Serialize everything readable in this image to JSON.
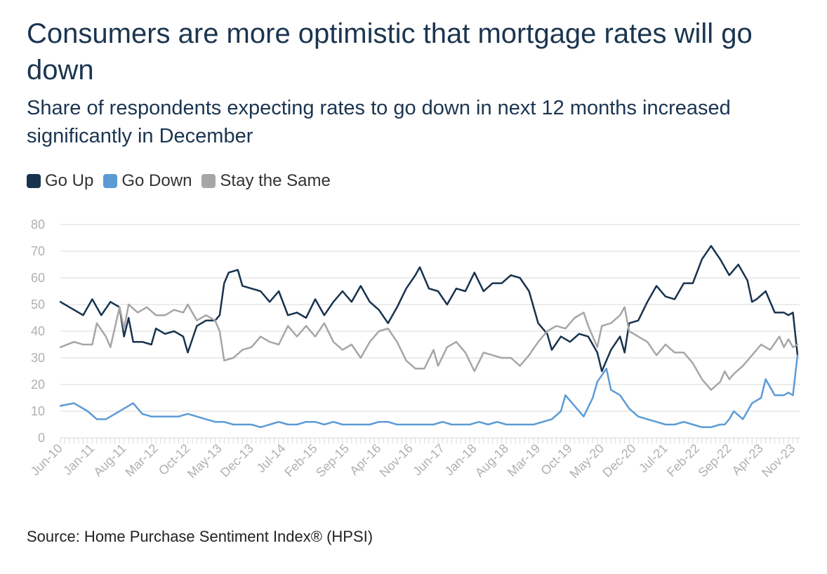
{
  "colors": {
    "go_up": "#17324d",
    "go_down": "#5b9bd5",
    "stay_same": "#a6a6a6",
    "grid": "#e6e6e6"
  },
  "chart_data": {
    "type": "line",
    "title": "Consumers are more optimistic that mortgage rates will go down",
    "subtitle": "Share of respondents expecting rates to go down in next 12 months increased significantly in December",
    "source": "Source: Home Purchase Sentiment Index® (HPSI)",
    "ylim": [
      0,
      80
    ],
    "y_ticks": [
      0,
      10,
      20,
      30,
      40,
      50,
      60,
      70,
      80
    ],
    "x_start": "Jun-10",
    "x_end": "Dec-23",
    "x_tick_labels": [
      "Jun-10",
      "Jan-11",
      "Aug-11",
      "Mar-12",
      "Oct-12",
      "May-13",
      "Dec-13",
      "Jul-14",
      "Feb-15",
      "Sep-15",
      "Apr-16",
      "Nov-16",
      "Jun-17",
      "Jan-18",
      "Aug-18",
      "Mar-19",
      "Oct-19",
      "May-20",
      "Dec-20",
      "Jul-21",
      "Feb-22",
      "Sep-22",
      "Apr-23",
      "Nov-23"
    ],
    "grid": true,
    "legend": "top-left",
    "series": [
      {
        "name": "Go Up",
        "color": "#17324d",
        "points": [
          [
            "Jun-10",
            51
          ],
          [
            "Sep-10",
            48
          ],
          [
            "Nov-10",
            46
          ],
          [
            "Jan-11",
            52
          ],
          [
            "Mar-11",
            46
          ],
          [
            "May-11",
            51
          ],
          [
            "Jul-11",
            49
          ],
          [
            "Aug-11",
            38
          ],
          [
            "Sep-11",
            45
          ],
          [
            "Oct-11",
            36
          ],
          [
            "Dec-11",
            36
          ],
          [
            "Feb-12",
            35
          ],
          [
            "Mar-12",
            41
          ],
          [
            "May-12",
            39
          ],
          [
            "Jul-12",
            40
          ],
          [
            "Sep-12",
            38
          ],
          [
            "Oct-12",
            32
          ],
          [
            "Dec-12",
            42
          ],
          [
            "Feb-13",
            44
          ],
          [
            "Apr-13",
            44
          ],
          [
            "May-13",
            46
          ],
          [
            "Jun-13",
            58
          ],
          [
            "Jul-13",
            62
          ],
          [
            "Sep-13",
            63
          ],
          [
            "Oct-13",
            57
          ],
          [
            "Dec-13",
            56
          ],
          [
            "Feb-14",
            55
          ],
          [
            "Apr-14",
            51
          ],
          [
            "Jun-14",
            55
          ],
          [
            "Aug-14",
            46
          ],
          [
            "Oct-14",
            47
          ],
          [
            "Dec-14",
            45
          ],
          [
            "Feb-15",
            52
          ],
          [
            "Apr-15",
            46
          ],
          [
            "Jun-15",
            51
          ],
          [
            "Aug-15",
            55
          ],
          [
            "Oct-15",
            51
          ],
          [
            "Dec-15",
            57
          ],
          [
            "Feb-16",
            51
          ],
          [
            "Apr-16",
            48
          ],
          [
            "Jun-16",
            43
          ],
          [
            "Aug-16",
            49
          ],
          [
            "Oct-16",
            56
          ],
          [
            "Dec-16",
            61
          ],
          [
            "Jan-17",
            64
          ],
          [
            "Mar-17",
            56
          ],
          [
            "May-17",
            55
          ],
          [
            "Jul-17",
            50
          ],
          [
            "Sep-17",
            56
          ],
          [
            "Nov-17",
            55
          ],
          [
            "Jan-18",
            62
          ],
          [
            "Mar-18",
            55
          ],
          [
            "May-18",
            58
          ],
          [
            "Jul-18",
            58
          ],
          [
            "Sep-18",
            61
          ],
          [
            "Nov-18",
            60
          ],
          [
            "Jan-19",
            55
          ],
          [
            "Mar-19",
            43
          ],
          [
            "May-19",
            39
          ],
          [
            "Jun-19",
            33
          ],
          [
            "Aug-19",
            38
          ],
          [
            "Oct-19",
            36
          ],
          [
            "Dec-19",
            39
          ],
          [
            "Feb-20",
            38
          ],
          [
            "Apr-20",
            32
          ],
          [
            "May-20",
            25
          ],
          [
            "Jul-20",
            33
          ],
          [
            "Sep-20",
            38
          ],
          [
            "Oct-20",
            32
          ],
          [
            "Nov-20",
            43
          ],
          [
            "Jan-21",
            44
          ],
          [
            "Mar-21",
            51
          ],
          [
            "May-21",
            57
          ],
          [
            "Jul-21",
            53
          ],
          [
            "Sep-21",
            52
          ],
          [
            "Nov-21",
            58
          ],
          [
            "Jan-22",
            58
          ],
          [
            "Mar-22",
            67
          ],
          [
            "May-22",
            72
          ],
          [
            "Jul-22",
            67
          ],
          [
            "Sep-22",
            61
          ],
          [
            "Nov-22",
            65
          ],
          [
            "Jan-23",
            59
          ],
          [
            "Feb-23",
            51
          ],
          [
            "Mar-23",
            52
          ],
          [
            "May-23",
            55
          ],
          [
            "Jul-23",
            47
          ],
          [
            "Sep-23",
            47
          ],
          [
            "Oct-23",
            46
          ],
          [
            "Nov-23",
            47
          ],
          [
            "Dec-23",
            31
          ]
        ]
      },
      {
        "name": "Go Down",
        "color": "#5b9bd5",
        "points": [
          [
            "Jun-10",
            12
          ],
          [
            "Sep-10",
            13
          ],
          [
            "Dec-10",
            10
          ],
          [
            "Feb-11",
            7
          ],
          [
            "Apr-11",
            7
          ],
          [
            "Jun-11",
            9
          ],
          [
            "Aug-11",
            11
          ],
          [
            "Oct-11",
            13
          ],
          [
            "Dec-11",
            9
          ],
          [
            "Feb-12",
            8
          ],
          [
            "Apr-12",
            8
          ],
          [
            "Jun-12",
            8
          ],
          [
            "Aug-12",
            8
          ],
          [
            "Oct-12",
            9
          ],
          [
            "Dec-12",
            8
          ],
          [
            "Feb-13",
            7
          ],
          [
            "Apr-13",
            6
          ],
          [
            "Jun-13",
            6
          ],
          [
            "Aug-13",
            5
          ],
          [
            "Oct-13",
            5
          ],
          [
            "Dec-13",
            5
          ],
          [
            "Feb-14",
            4
          ],
          [
            "Apr-14",
            5
          ],
          [
            "Jun-14",
            6
          ],
          [
            "Aug-14",
            5
          ],
          [
            "Oct-14",
            5
          ],
          [
            "Dec-14",
            6
          ],
          [
            "Feb-15",
            6
          ],
          [
            "Apr-15",
            5
          ],
          [
            "Jun-15",
            6
          ],
          [
            "Aug-15",
            5
          ],
          [
            "Oct-15",
            5
          ],
          [
            "Dec-15",
            5
          ],
          [
            "Feb-16",
            5
          ],
          [
            "Apr-16",
            6
          ],
          [
            "Jun-16",
            6
          ],
          [
            "Aug-16",
            5
          ],
          [
            "Oct-16",
            5
          ],
          [
            "Dec-16",
            5
          ],
          [
            "Feb-17",
            5
          ],
          [
            "Apr-17",
            5
          ],
          [
            "Jun-17",
            6
          ],
          [
            "Aug-17",
            5
          ],
          [
            "Oct-17",
            5
          ],
          [
            "Dec-17",
            5
          ],
          [
            "Feb-18",
            6
          ],
          [
            "Apr-18",
            5
          ],
          [
            "Jun-18",
            6
          ],
          [
            "Aug-18",
            5
          ],
          [
            "Oct-18",
            5
          ],
          [
            "Dec-18",
            5
          ],
          [
            "Feb-19",
            5
          ],
          [
            "Apr-19",
            6
          ],
          [
            "Jun-19",
            7
          ],
          [
            "Aug-19",
            10
          ],
          [
            "Sep-19",
            16
          ],
          [
            "Nov-19",
            12
          ],
          [
            "Jan-20",
            8
          ],
          [
            "Mar-20",
            15
          ],
          [
            "Apr-20",
            21
          ],
          [
            "Jun-20",
            26
          ],
          [
            "Jul-20",
            18
          ],
          [
            "Sep-20",
            16
          ],
          [
            "Nov-20",
            11
          ],
          [
            "Jan-21",
            8
          ],
          [
            "Mar-21",
            7
          ],
          [
            "May-21",
            6
          ],
          [
            "Jul-21",
            5
          ],
          [
            "Sep-21",
            5
          ],
          [
            "Nov-21",
            6
          ],
          [
            "Jan-22",
            5
          ],
          [
            "Mar-22",
            4
          ],
          [
            "May-22",
            4
          ],
          [
            "Jul-22",
            5
          ],
          [
            "Aug-22",
            5
          ],
          [
            "Sep-22",
            7
          ],
          [
            "Oct-22",
            10
          ],
          [
            "Dec-22",
            7
          ],
          [
            "Feb-23",
            13
          ],
          [
            "Apr-23",
            15
          ],
          [
            "May-23",
            22
          ],
          [
            "Jul-23",
            16
          ],
          [
            "Sep-23",
            16
          ],
          [
            "Oct-23",
            17
          ],
          [
            "Nov-23",
            16
          ],
          [
            "Dec-23",
            31
          ]
        ]
      },
      {
        "name": "Stay the Same",
        "color": "#a6a6a6",
        "points": [
          [
            "Jun-10",
            34
          ],
          [
            "Sep-10",
            36
          ],
          [
            "Nov-10",
            35
          ],
          [
            "Jan-11",
            35
          ],
          [
            "Feb-11",
            43
          ],
          [
            "Apr-11",
            38
          ],
          [
            "May-11",
            34
          ],
          [
            "Jul-11",
            49
          ],
          [
            "Aug-11",
            41
          ],
          [
            "Sep-11",
            50
          ],
          [
            "Nov-11",
            47
          ],
          [
            "Jan-12",
            49
          ],
          [
            "Mar-12",
            46
          ],
          [
            "May-12",
            46
          ],
          [
            "Jul-12",
            48
          ],
          [
            "Sep-12",
            47
          ],
          [
            "Oct-12",
            50
          ],
          [
            "Dec-12",
            44
          ],
          [
            "Feb-13",
            46
          ],
          [
            "Apr-13",
            44
          ],
          [
            "May-13",
            40
          ],
          [
            "Jun-13",
            29
          ],
          [
            "Aug-13",
            30
          ],
          [
            "Oct-13",
            33
          ],
          [
            "Dec-13",
            34
          ],
          [
            "Feb-14",
            38
          ],
          [
            "Apr-14",
            36
          ],
          [
            "Jun-14",
            35
          ],
          [
            "Aug-14",
            42
          ],
          [
            "Oct-14",
            38
          ],
          [
            "Dec-14",
            42
          ],
          [
            "Feb-15",
            38
          ],
          [
            "Apr-15",
            43
          ],
          [
            "Jun-15",
            36
          ],
          [
            "Aug-15",
            33
          ],
          [
            "Oct-15",
            35
          ],
          [
            "Dec-15",
            30
          ],
          [
            "Feb-16",
            36
          ],
          [
            "Apr-16",
            40
          ],
          [
            "Jun-16",
            41
          ],
          [
            "Aug-16",
            36
          ],
          [
            "Oct-16",
            29
          ],
          [
            "Dec-16",
            26
          ],
          [
            "Feb-17",
            26
          ],
          [
            "Apr-17",
            33
          ],
          [
            "May-17",
            27
          ],
          [
            "Jul-17",
            34
          ],
          [
            "Sep-17",
            36
          ],
          [
            "Nov-17",
            32
          ],
          [
            "Jan-18",
            25
          ],
          [
            "Mar-18",
            32
          ],
          [
            "May-18",
            31
          ],
          [
            "Jul-18",
            30
          ],
          [
            "Sep-18",
            30
          ],
          [
            "Nov-18",
            27
          ],
          [
            "Jan-19",
            31
          ],
          [
            "Mar-19",
            36
          ],
          [
            "May-19",
            40
          ],
          [
            "Jul-19",
            42
          ],
          [
            "Sep-19",
            41
          ],
          [
            "Nov-19",
            45
          ],
          [
            "Jan-20",
            47
          ],
          [
            "Feb-20",
            42
          ],
          [
            "Apr-20",
            34
          ],
          [
            "May-20",
            42
          ],
          [
            "Jul-20",
            43
          ],
          [
            "Sep-20",
            46
          ],
          [
            "Oct-20",
            49
          ],
          [
            "Nov-20",
            40
          ],
          [
            "Jan-21",
            38
          ],
          [
            "Mar-21",
            36
          ],
          [
            "May-21",
            31
          ],
          [
            "Jul-21",
            35
          ],
          [
            "Sep-21",
            32
          ],
          [
            "Nov-21",
            32
          ],
          [
            "Jan-22",
            28
          ],
          [
            "Mar-22",
            22
          ],
          [
            "May-22",
            18
          ],
          [
            "Jul-22",
            21
          ],
          [
            "Aug-22",
            25
          ],
          [
            "Sep-22",
            22
          ],
          [
            "Oct-22",
            24
          ],
          [
            "Dec-22",
            27
          ],
          [
            "Feb-23",
            31
          ],
          [
            "Apr-23",
            35
          ],
          [
            "Jun-23",
            33
          ],
          [
            "Aug-23",
            38
          ],
          [
            "Sep-23",
            34
          ],
          [
            "Oct-23",
            37
          ],
          [
            "Nov-23",
            34
          ],
          [
            "Dec-23",
            35
          ]
        ]
      }
    ]
  }
}
